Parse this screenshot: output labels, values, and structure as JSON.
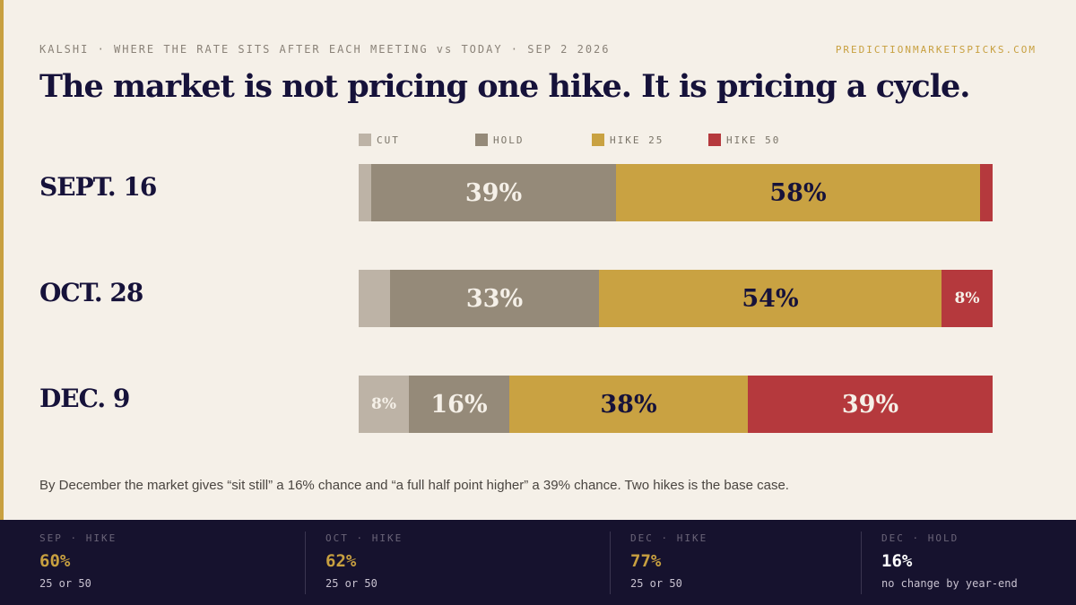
{
  "header": {
    "topline": "KALSHI · WHERE THE RATE SITS AFTER EACH MEETING vs TODAY · SEP 2 2026",
    "site": "PREDICTIONMARKETSPICKS.COM",
    "headline": "The market is not pricing one hike. It is pricing a cycle."
  },
  "colors": {
    "cut": "#bdb3a6",
    "hold": "#958a79",
    "hike25": "#c9a242",
    "hike50": "#b5393d",
    "accent": "#c8a040",
    "navy": "#16123a"
  },
  "chart_data": {
    "type": "bar",
    "orientation": "horizontal",
    "stacked": true,
    "normalized": true,
    "legend_position": "top",
    "categories": [
      "SEPT. 16",
      "OCT. 28",
      "DEC. 9"
    ],
    "series": [
      {
        "name": "CUT",
        "values": [
          2,
          5,
          8
        ],
        "labels": [
          "",
          "",
          "8%"
        ]
      },
      {
        "name": "HOLD",
        "values": [
          39,
          33,
          16
        ],
        "labels": [
          "39%",
          "33%",
          "16%"
        ]
      },
      {
        "name": "HIKE 25",
        "values": [
          58,
          54,
          38
        ],
        "labels": [
          "58%",
          "54%",
          "38%"
        ]
      },
      {
        "name": "HIKE 50",
        "values": [
          2,
          8,
          39
        ],
        "labels": [
          "",
          "8%",
          "39%"
        ]
      }
    ]
  },
  "note": "By December the market gives “sit still” a 16% chance and “a full half point higher” a 39% chance. Two hikes is the base case.",
  "stats": [
    {
      "label": "SEP · HIKE",
      "value": "60%",
      "sub": "25 or 50",
      "color": "#c8a040"
    },
    {
      "label": "OCT · HIKE",
      "value": "62%",
      "sub": "25 or 50",
      "color": "#c8a040"
    },
    {
      "label": "DEC · HIKE",
      "value": "77%",
      "sub": "25 or 50",
      "color": "#c8a040"
    },
    {
      "label": "DEC · HOLD",
      "value": "16%",
      "sub": "no change by year-end",
      "color": "#ffffff"
    }
  ]
}
